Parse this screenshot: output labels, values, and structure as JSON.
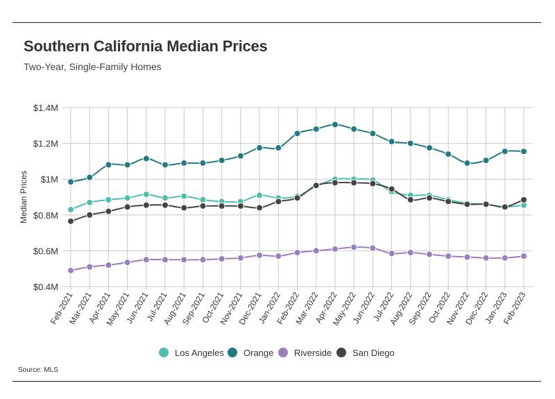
{
  "header": {
    "title": "Southern California Median Prices",
    "subtitle": "Two-Year, Single-Family Homes"
  },
  "footer": {
    "source": "Source: MLS"
  },
  "chart_data": {
    "type": "line",
    "title": "Southern California Median Prices",
    "subtitle": "Two-Year, Single-Family Homes",
    "xlabel": "",
    "ylabel": "Median Prices",
    "ylim": [
      0.4,
      1.4
    ],
    "y_ticks": [
      1.4,
      1.2,
      1.0,
      0.8,
      0.6,
      0.4
    ],
    "y_tick_labels": [
      "$1.4M",
      "$1.2M",
      "$1M",
      "$0.8M",
      "$0.6M",
      "$0.4M"
    ],
    "y_unit": "millions USD",
    "grid": true,
    "legend_position": "bottom",
    "x": [
      "Feb-2021",
      "Mar-2021",
      "Apr-2021",
      "May-2021",
      "Jun-2021",
      "Jul-2021",
      "Aug-2021",
      "Sep-2021",
      "Oct-2021",
      "Nov-2021",
      "Dec-2021",
      "Jan-2022",
      "Feb-2022",
      "Mar-2022",
      "Apr-2022",
      "May-2022",
      "Jun-2022",
      "Jul-2022",
      "Aug-2022",
      "Sep-2022",
      "Oct-2022",
      "Nov-2022",
      "Dec-2022",
      "Jan-2023",
      "Feb-2023"
    ],
    "series": [
      {
        "name": "Los Angeles",
        "color": "#4fbfab",
        "values": [
          0.83,
          0.87,
          0.885,
          0.895,
          0.915,
          0.895,
          0.905,
          0.885,
          0.875,
          0.875,
          0.91,
          0.895,
          0.905,
          0.96,
          1.0,
          1.0,
          0.995,
          0.93,
          0.91,
          0.91,
          0.885,
          0.865,
          0.86,
          0.845,
          0.855
        ]
      },
      {
        "name": "Orange",
        "color": "#237a83",
        "values": [
          0.985,
          1.01,
          1.08,
          1.08,
          1.115,
          1.08,
          1.09,
          1.09,
          1.105,
          1.13,
          1.175,
          1.175,
          1.255,
          1.28,
          1.305,
          1.28,
          1.255,
          1.21,
          1.2,
          1.175,
          1.14,
          1.09,
          1.105,
          1.155,
          1.155
        ]
      },
      {
        "name": "Riverside",
        "color": "#9a7ebd",
        "values": [
          0.49,
          0.51,
          0.52,
          0.535,
          0.55,
          0.55,
          0.55,
          0.55,
          0.555,
          0.56,
          0.575,
          0.57,
          0.59,
          0.6,
          0.61,
          0.62,
          0.615,
          0.585,
          0.59,
          0.58,
          0.57,
          0.565,
          0.56,
          0.56,
          0.57
        ]
      },
      {
        "name": "San Diego",
        "color": "#444444",
        "values": [
          0.765,
          0.8,
          0.82,
          0.845,
          0.855,
          0.855,
          0.84,
          0.85,
          0.85,
          0.85,
          0.84,
          0.875,
          0.895,
          0.965,
          0.98,
          0.98,
          0.975,
          0.945,
          0.885,
          0.895,
          0.875,
          0.86,
          0.86,
          0.845,
          0.885
        ]
      }
    ]
  }
}
